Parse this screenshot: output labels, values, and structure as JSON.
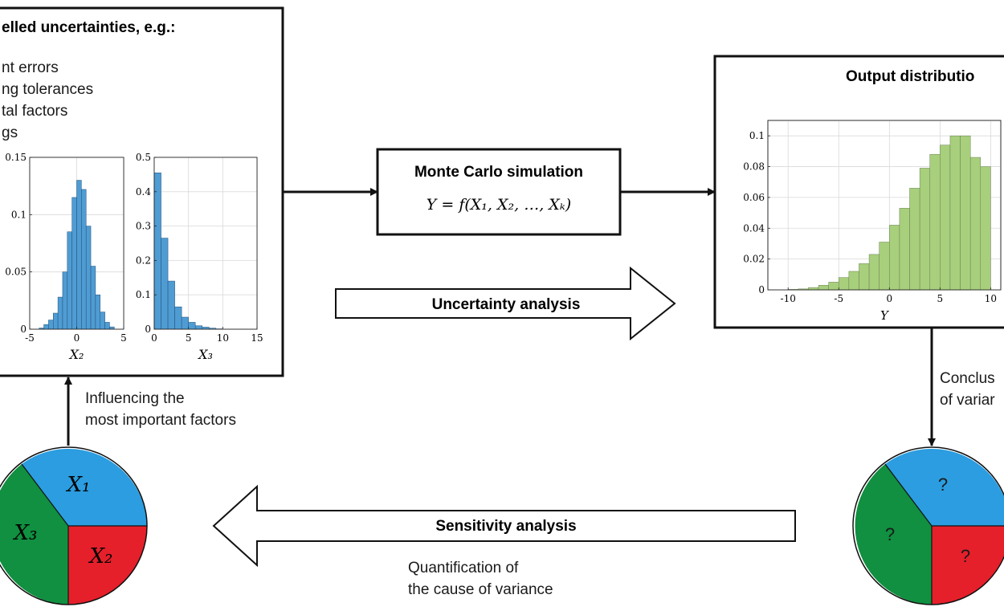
{
  "colors": {
    "blue": "#2b9de0",
    "red": "#e5202b",
    "green": "#109040",
    "hist_blue": "#4f9cd3",
    "hist_green": "#a8cf7c"
  },
  "input_box": {
    "title": "elled uncertainties, e.g.:",
    "items": [
      "nt errors",
      "ng tolerances",
      "tal factors",
      "gs"
    ]
  },
  "mc_box": {
    "title": "Monte Carlo simulation",
    "formula": "Y = f(X₁, X₂, …, Xₖ)"
  },
  "output_box": {
    "title": "Output distributio"
  },
  "arrows": {
    "uncertainty": "Uncertainty analysis",
    "sensitivity": "Sensitivity analysis",
    "influencing_1": "Influencing the",
    "influencing_2": "most important factors",
    "quant_1": "Quantification of",
    "quant_2": "the cause of variance",
    "conclus_1": "Conclus",
    "conclus_2": "of variar"
  },
  "pie_left": {
    "x1": "X₁",
    "x2": "X₂",
    "x3": "X₃"
  },
  "pie_right": {
    "q1": "?",
    "q2": "?",
    "q3": "?"
  },
  "chart_data": [
    {
      "type": "bar",
      "xlabel": "X₂",
      "xlim": [
        -5,
        5
      ],
      "ylim": [
        0,
        0.15
      ],
      "xticks": [
        "-5",
        "0",
        "5"
      ],
      "yticks": [
        "0",
        "0.05",
        "0.1",
        "0.15"
      ],
      "bin_width": 0.5,
      "x": [
        -3.75,
        -3.25,
        -2.75,
        -2.25,
        -1.75,
        -1.25,
        -0.75,
        -0.25,
        0.25,
        0.75,
        1.25,
        1.75,
        2.25,
        2.75,
        3.25,
        3.75
      ],
      "values": [
        0.001,
        0.004,
        0.008,
        0.014,
        0.028,
        0.05,
        0.085,
        0.115,
        0.13,
        0.122,
        0.09,
        0.055,
        0.03,
        0.015,
        0.006,
        0.002
      ]
    },
    {
      "type": "bar",
      "xlabel": "X₃",
      "xlim": [
        0,
        15
      ],
      "ylim": [
        0,
        0.5
      ],
      "xticks": [
        "0",
        "5",
        "10",
        "15"
      ],
      "yticks": [
        "0",
        "0.1",
        "0.2",
        "0.3",
        "0.4",
        "0.5"
      ],
      "bin_width": 1,
      "x": [
        0.5,
        1.5,
        2.5,
        3.5,
        4.5,
        5.5,
        6.5,
        7.5,
        8.5,
        9.5
      ],
      "values": [
        0.455,
        0.265,
        0.14,
        0.065,
        0.035,
        0.02,
        0.01,
        0.006,
        0.003,
        0.001
      ]
    },
    {
      "type": "bar",
      "xlabel": "Y",
      "xlim": [
        -12,
        11
      ],
      "ylim": [
        0,
        0.11
      ],
      "xticks": [
        "-10",
        "-5",
        "0",
        "5",
        "10"
      ],
      "yticks": [
        "0",
        "0.02",
        "0.04",
        "0.06",
        "0.08",
        "0.1"
      ],
      "bin_width": 1,
      "x": [
        -9.5,
        -8.5,
        -7.5,
        -6.5,
        -5.5,
        -4.5,
        -3.5,
        -2.5,
        -1.5,
        -0.5,
        0.5,
        1.5,
        2.5,
        3.5,
        4.5,
        5.5,
        6.5,
        7.5,
        8.5,
        9.5
      ],
      "values": [
        0.0003,
        0.0006,
        0.0015,
        0.003,
        0.005,
        0.008,
        0.012,
        0.017,
        0.023,
        0.031,
        0.042,
        0.053,
        0.066,
        0.079,
        0.088,
        0.094,
        0.1,
        0.1,
        0.086,
        0.08
      ]
    }
  ]
}
